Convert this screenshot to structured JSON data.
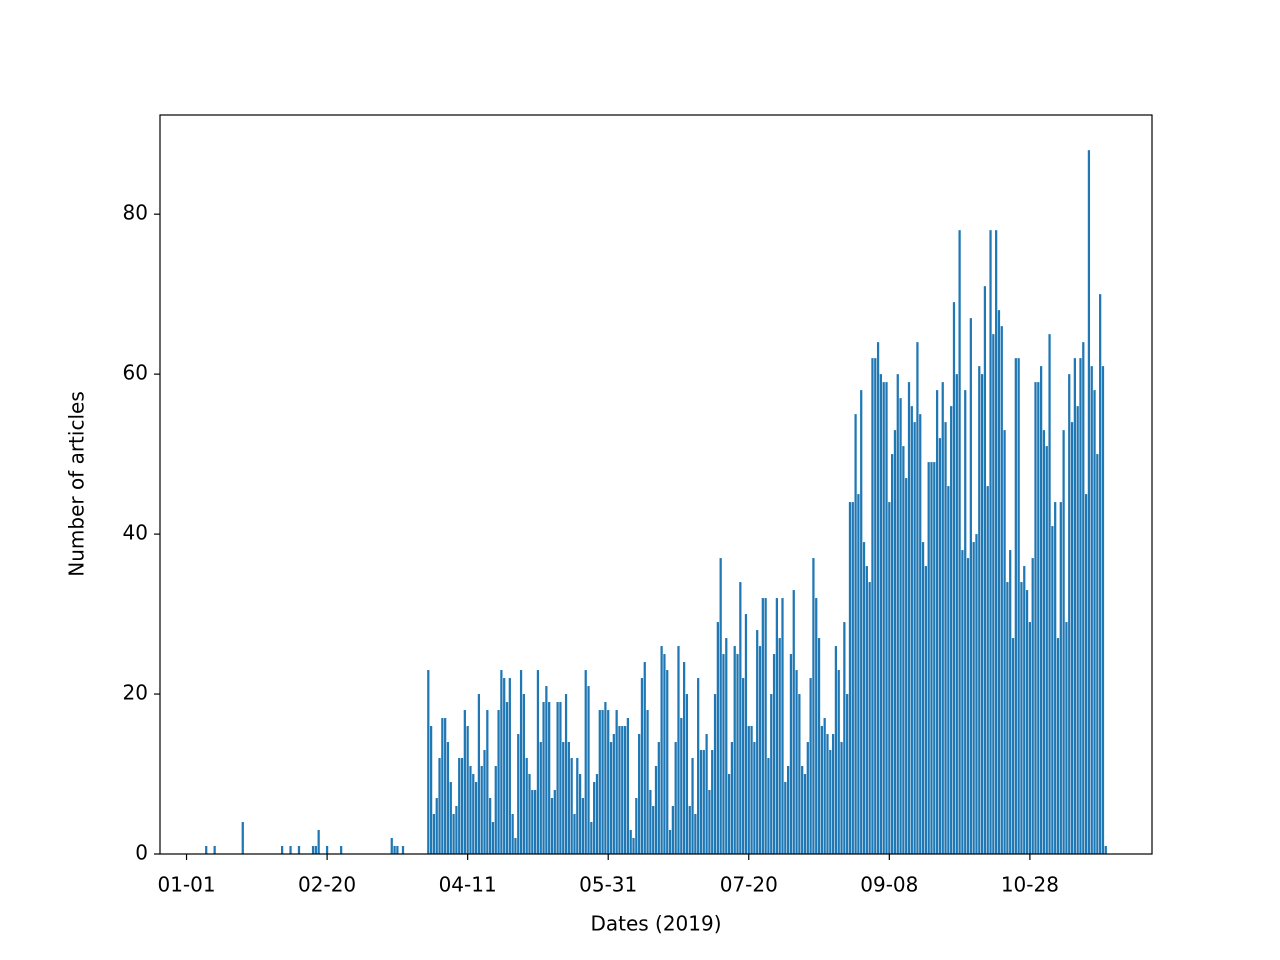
{
  "chart_data": {
    "type": "bar",
    "x_label": "Dates (2019)",
    "y_label": "Number of articles",
    "color": "#1f77b4",
    "x": [
      "01-08",
      "01-11",
      "01-21",
      "02-04",
      "02-07",
      "02-10",
      "02-15",
      "02-16",
      "02-17",
      "02-20",
      "02-25",
      "03-15",
      "03-16",
      "03-17",
      "03-19",
      "03-28",
      "03-29",
      "03-30",
      "03-31",
      "04-01",
      "04-02",
      "04-03",
      "04-04",
      "04-05",
      "04-06",
      "04-07",
      "04-08",
      "04-09",
      "04-10",
      "04-11",
      "04-12",
      "04-13",
      "04-14",
      "04-15",
      "04-16",
      "04-17",
      "04-18",
      "04-19",
      "04-20",
      "04-21",
      "04-22",
      "04-23",
      "04-24",
      "04-25",
      "04-26",
      "04-27",
      "04-28",
      "04-29",
      "04-30",
      "05-01",
      "05-02",
      "05-03",
      "05-04",
      "05-05",
      "05-06",
      "05-07",
      "05-08",
      "05-09",
      "05-10",
      "05-11",
      "05-12",
      "05-13",
      "05-14",
      "05-15",
      "05-16",
      "05-17",
      "05-18",
      "05-19",
      "05-20",
      "05-21",
      "05-22",
      "05-23",
      "05-24",
      "05-25",
      "05-26",
      "05-27",
      "05-28",
      "05-29",
      "05-30",
      "05-31",
      "06-01",
      "06-02",
      "06-03",
      "06-04",
      "06-05",
      "06-06",
      "06-07",
      "06-08",
      "06-09",
      "06-10",
      "06-11",
      "06-12",
      "06-13",
      "06-14",
      "06-15",
      "06-16",
      "06-17",
      "06-18",
      "06-19",
      "06-20",
      "06-21",
      "06-22",
      "06-23",
      "06-24",
      "06-25",
      "06-26",
      "06-27",
      "06-28",
      "06-29",
      "06-30",
      "07-01",
      "07-02",
      "07-03",
      "07-04",
      "07-05",
      "07-06",
      "07-07",
      "07-08",
      "07-09",
      "07-10",
      "07-11",
      "07-12",
      "07-13",
      "07-14",
      "07-15",
      "07-16",
      "07-17",
      "07-18",
      "07-19",
      "07-20",
      "07-21",
      "07-22",
      "07-23",
      "07-24",
      "07-25",
      "07-26",
      "07-27",
      "07-28",
      "07-29",
      "07-30",
      "07-31",
      "08-01",
      "08-02",
      "08-03",
      "08-04",
      "08-05",
      "08-06",
      "08-07",
      "08-08",
      "08-09",
      "08-10",
      "08-11",
      "08-12",
      "08-13",
      "08-14",
      "08-15",
      "08-16",
      "08-17",
      "08-18",
      "08-19",
      "08-20",
      "08-21",
      "08-22",
      "08-23",
      "08-24",
      "08-25",
      "08-26",
      "08-27",
      "08-28",
      "08-29",
      "08-30",
      "08-31",
      "09-01",
      "09-02",
      "09-03",
      "09-04",
      "09-05",
      "09-06",
      "09-07",
      "09-08",
      "09-09",
      "09-10",
      "09-11",
      "09-12",
      "09-13",
      "09-14",
      "09-15",
      "09-16",
      "09-17",
      "09-18",
      "09-19",
      "09-20",
      "09-21",
      "09-22",
      "09-23",
      "09-24",
      "09-25",
      "09-26",
      "09-27",
      "09-28",
      "09-29",
      "09-30",
      "10-01",
      "10-02",
      "10-03",
      "10-04",
      "10-05",
      "10-06",
      "10-07",
      "10-08",
      "10-09",
      "10-10",
      "10-11",
      "10-12",
      "10-13",
      "10-14",
      "10-15",
      "10-16",
      "10-17",
      "10-18",
      "10-19",
      "10-20",
      "10-21",
      "10-22",
      "10-23",
      "10-24",
      "10-25",
      "10-26",
      "10-27",
      "10-28",
      "10-29",
      "10-30",
      "10-31",
      "11-01",
      "11-02",
      "11-03",
      "11-04",
      "11-05",
      "11-06",
      "11-07",
      "11-08",
      "11-09",
      "11-10",
      "11-11",
      "11-12",
      "11-13",
      "11-14",
      "11-15",
      "11-16",
      "11-17",
      "11-18",
      "11-19",
      "11-20",
      "11-21",
      "11-22",
      "11-23",
      "11-24"
    ],
    "values": [
      1,
      1,
      4,
      1,
      1,
      1,
      1,
      1,
      3,
      1,
      1,
      2,
      1,
      1,
      1,
      23,
      16,
      5,
      7,
      12,
      17,
      17,
      14,
      9,
      5,
      6,
      12,
      12,
      18,
      16,
      11,
      10,
      9,
      20,
      11,
      13,
      18,
      7,
      4,
      11,
      18,
      23,
      22,
      19,
      22,
      5,
      2,
      15,
      23,
      20,
      12,
      10,
      8,
      8,
      23,
      14,
      19,
      21,
      19,
      7,
      8,
      19,
      19,
      14,
      20,
      14,
      12,
      5,
      12,
      10,
      7,
      23,
      21,
      4,
      9,
      10,
      18,
      18,
      19,
      18,
      14,
      15,
      18,
      16,
      16,
      16,
      17,
      3,
      2,
      7,
      15,
      22,
      24,
      18,
      8,
      6,
      11,
      14,
      26,
      25,
      23,
      3,
      6,
      14,
      26,
      17,
      24,
      20,
      6,
      12,
      5,
      22,
      13,
      13,
      15,
      8,
      13,
      20,
      29,
      37,
      25,
      27,
      10,
      14,
      26,
      25,
      34,
      22,
      30,
      16,
      16,
      14,
      28,
      26,
      32,
      32,
      12,
      20,
      25,
      32,
      27,
      32,
      9,
      11,
      25,
      33,
      23,
      20,
      11,
      10,
      14,
      22,
      37,
      32,
      27,
      16,
      17,
      15,
      13,
      15,
      26,
      23,
      14,
      29,
      20,
      44,
      44,
      55,
      45,
      58,
      39,
      36,
      34,
      62,
      62,
      64,
      60,
      59,
      59,
      44,
      50,
      53,
      60,
      57,
      51,
      47,
      59,
      56,
      54,
      64,
      55,
      39,
      36,
      49,
      49,
      49,
      58,
      52,
      59,
      54,
      46,
      56,
      69,
      60,
      78,
      38,
      58,
      37,
      67,
      39,
      40,
      61,
      60,
      71,
      46,
      78,
      65,
      78,
      68,
      66,
      53,
      34,
      38,
      27,
      62,
      62,
      34,
      36,
      33,
      29,
      37,
      59,
      59,
      61,
      53,
      51,
      65,
      41,
      44,
      27,
      44,
      53,
      29,
      60,
      54,
      62,
      56,
      62,
      64,
      45,
      88,
      61,
      58,
      50,
      70,
      61,
      1
    ],
    "xticks": [
      "01-01",
      "02-20",
      "04-11",
      "05-31",
      "07-20",
      "09-08",
      "10-28"
    ],
    "ylim": [
      0,
      92.4
    ],
    "yticks": [
      0,
      20,
      40,
      60,
      80
    ]
  }
}
